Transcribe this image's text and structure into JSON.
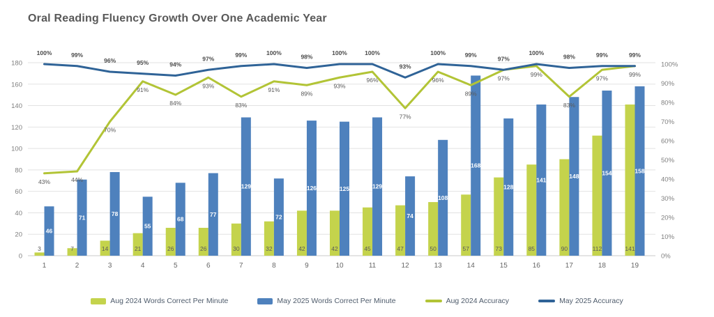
{
  "chart_data": {
    "type": "combo",
    "title": "Oral Reading Fluency Growth Over One Academic Year",
    "categories": [
      "1",
      "2",
      "3",
      "4",
      "5",
      "6",
      "7",
      "8",
      "9",
      "10",
      "11",
      "12",
      "13",
      "14",
      "15",
      "16",
      "17",
      "18",
      "19"
    ],
    "series": [
      {
        "name": "Aug 2024 Words Correct Per Minute",
        "type": "bar",
        "color": "#c4d34c",
        "label_color": "#595959",
        "values": [
          3,
          7,
          14,
          21,
          26,
          26,
          30,
          32,
          42,
          42,
          45,
          47,
          50,
          57,
          73,
          85,
          90,
          112,
          141
        ]
      },
      {
        "name": "May 2025 Words Correct Per Minute",
        "type": "bar",
        "color": "#4e81bd",
        "label_color": "#ffffff",
        "values": [
          46,
          71,
          78,
          55,
          68,
          77,
          129,
          72,
          126,
          125,
          129,
          74,
          108,
          168,
          128,
          141,
          148,
          154,
          158
        ]
      },
      {
        "name": "Aug 2024 Accuracy",
        "type": "line",
        "color": "#b2c436",
        "label_color": "#595959",
        "label_bold": false,
        "values": [
          43,
          44,
          70,
          91,
          84,
          93,
          83,
          91,
          89,
          93,
          96,
          77,
          96,
          89,
          97,
          99,
          83,
          97,
          99
        ],
        "label_suffix": "%"
      },
      {
        "name": "May 2025 Accuracy",
        "type": "line",
        "color": "#2f6397",
        "label_color": "#4a4a4a",
        "label_bold": true,
        "values": [
          100,
          99,
          96,
          95,
          94,
          97,
          99,
          100,
          98,
          100,
          100,
          93,
          100,
          99,
          97,
          100,
          98,
          99,
          99
        ],
        "label_suffix": "%"
      }
    ],
    "left_axis": {
      "min": 0,
      "max": 180,
      "step": 20
    },
    "right_axis": {
      "min": 0,
      "max": 100,
      "step": 10,
      "suffix": "%"
    },
    "grid": true,
    "legend_position": "bottom",
    "colors": {
      "grid": "#e2e2e2",
      "axis_line": "#c9c9c9",
      "tick_text": "#7f7f7f",
      "x_tick_text": "#666666",
      "title_text": "#595959"
    }
  }
}
